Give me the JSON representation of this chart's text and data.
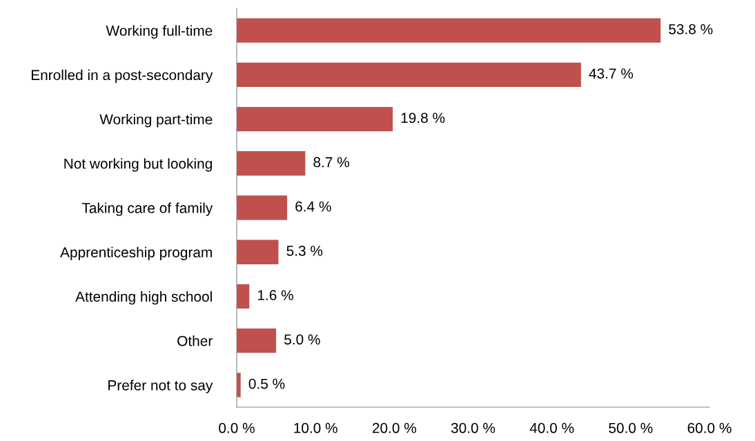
{
  "chart_data": {
    "type": "bar",
    "orientation": "horizontal",
    "categories": [
      "Working full-time",
      "Enrolled in a post-secondary",
      "Working part-time",
      "Not working but looking",
      "Taking care of family",
      "Apprenticeship program",
      "Attending high school",
      "Other",
      "Prefer not to say"
    ],
    "values": [
      53.8,
      43.7,
      19.8,
      8.7,
      6.4,
      5.3,
      1.6,
      5.0,
      0.5
    ],
    "value_labels": [
      "53.8 %",
      "43.7 %",
      "19.8 %",
      "8.7 %",
      "6.4 %",
      "5.3 %",
      "1.6 %",
      "5.0 %",
      "0.5 %"
    ],
    "color": "#c0504d",
    "xlim": [
      0,
      60
    ],
    "xticks": [
      {
        "value": 0,
        "label": "0.0 %"
      },
      {
        "value": 10,
        "label": "10.0 %"
      },
      {
        "value": 20,
        "label": "20.0 %"
      },
      {
        "value": 30,
        "label": "30.0 %"
      },
      {
        "value": 40,
        "label": "40.0 %"
      },
      {
        "value": 50,
        "label": "50.0 %"
      },
      {
        "value": 60,
        "label": "60.0 %"
      }
    ],
    "grid": false,
    "legend": false
  }
}
